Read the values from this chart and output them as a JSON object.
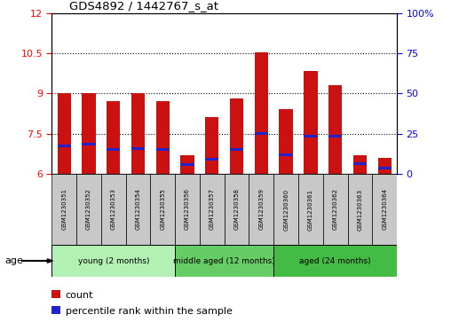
{
  "title": "GDS4892 / 1442767_s_at",
  "samples": [
    "GSM1230351",
    "GSM1230352",
    "GSM1230353",
    "GSM1230354",
    "GSM1230355",
    "GSM1230356",
    "GSM1230357",
    "GSM1230358",
    "GSM1230359",
    "GSM1230360",
    "GSM1230361",
    "GSM1230362",
    "GSM1230363",
    "GSM1230364"
  ],
  "count_values": [
    9.0,
    9.0,
    8.7,
    9.0,
    8.7,
    6.7,
    8.1,
    8.8,
    10.52,
    8.4,
    9.82,
    9.3,
    6.7,
    6.6
  ],
  "percentile_values": [
    7.05,
    7.1,
    6.9,
    6.95,
    6.9,
    6.35,
    6.55,
    6.9,
    7.5,
    6.7,
    7.42,
    7.42,
    6.37,
    6.22
  ],
  "ymin": 6.0,
  "ymax": 12.0,
  "yticks": [
    6,
    7.5,
    9,
    10.5,
    12
  ],
  "ytick_labels": [
    "6",
    "7.5",
    "9",
    "10.5",
    "12"
  ],
  "right_yticks": [
    0,
    25,
    50,
    75,
    100
  ],
  "right_ytick_labels": [
    "0",
    "25",
    "50",
    "75",
    "100%"
  ],
  "bar_color": "#cc1111",
  "percentile_color": "#2222cc",
  "bar_width": 0.55,
  "groups": [
    {
      "label": "young (2 months)",
      "start": 0,
      "end": 4,
      "color": "#b3f0b3"
    },
    {
      "label": "middle aged (12 months)",
      "start": 5,
      "end": 8,
      "color": "#66cc66"
    },
    {
      "label": "aged (24 months)",
      "start": 9,
      "end": 13,
      "color": "#44bb44"
    }
  ],
  "age_label": "age",
  "legend_count_label": "count",
  "legend_percentile_label": "percentile rank within the sample",
  "grid_color": "black",
  "grid_style": "dotted",
  "label_box_color": "#c8c8c8",
  "fig_width": 5.08,
  "fig_height": 3.63,
  "dpi": 100
}
